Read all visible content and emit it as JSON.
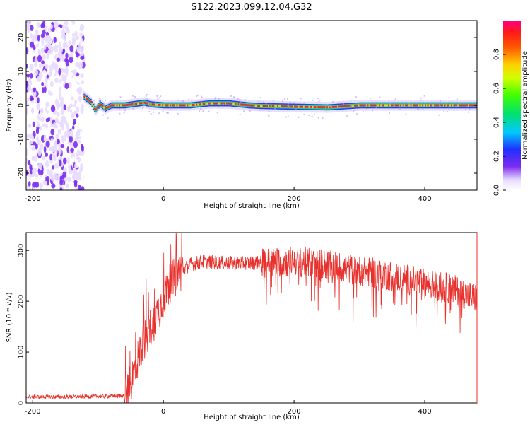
{
  "title": "S122.2023.099.12.04.G32",
  "chart_data": [
    {
      "type": "heatmap",
      "xlabel": "Height of straight line (km)",
      "ylabel": "Frequency (Hz)",
      "xlim": [
        -210,
        480
      ],
      "ylim": [
        -25,
        25
      ],
      "xticks": [
        -200,
        0,
        200,
        400
      ],
      "xtick_labels": [
        "-200",
        "0",
        "200",
        "400"
      ],
      "yticks": [
        -20,
        -10,
        0,
        10,
        20
      ],
      "ytick_labels": [
        "-20",
        "-10",
        "0",
        "10",
        "20"
      ],
      "colorbar": {
        "label": "Normalized spectral amplitude",
        "range": [
          0,
          1
        ],
        "ticks": [
          0.0,
          0.2,
          0.4,
          0.6,
          0.8
        ],
        "tick_labels": [
          "0.0",
          "0.2",
          "0.4",
          "0.6",
          "0.8"
        ],
        "colormap": "rainbow: white-violet-blue-cyan-green-yellow-orange-red-magenta"
      },
      "regions": [
        {
          "x": [
            -210,
            -122
          ],
          "freq": [
            -25,
            25
          ],
          "amplitude": 0.15
        },
        {
          "x": [
            -122,
            480
          ],
          "freq": [
            -1.5,
            1.5
          ],
          "amplitude": 0.9
        }
      ],
      "ridge": [
        {
          "x": -122,
          "f": 2.5
        },
        {
          "x": -112,
          "f": 1.0
        },
        {
          "x": -105,
          "f": -1.5
        },
        {
          "x": -98,
          "f": 0.5
        },
        {
          "x": -90,
          "f": -1.0
        },
        {
          "x": -80,
          "f": 0.0
        },
        {
          "x": -60,
          "f": 0.0
        },
        {
          "x": -30,
          "f": 0.8
        },
        {
          "x": -20,
          "f": 0.3
        },
        {
          "x": 0,
          "f": 0.0
        },
        {
          "x": 40,
          "f": 0.0
        },
        {
          "x": 70,
          "f": 0.6
        },
        {
          "x": 100,
          "f": 0.6
        },
        {
          "x": 130,
          "f": 0.0
        },
        {
          "x": 150,
          "f": -0.2
        },
        {
          "x": 200,
          "f": -0.4
        },
        {
          "x": 250,
          "f": -0.6
        },
        {
          "x": 300,
          "f": 0.0
        },
        {
          "x": 350,
          "f": 0.0
        },
        {
          "x": 400,
          "f": 0.0
        },
        {
          "x": 480,
          "f": 0.0
        }
      ]
    },
    {
      "type": "line",
      "xlabel": "Height of straight line (km)",
      "ylabel": "SNR (10 * v/v)",
      "xlim": [
        -210,
        480
      ],
      "ylim": [
        0,
        335
      ],
      "xticks": [
        -200,
        0,
        200,
        400
      ],
      "xtick_labels": [
        "-200",
        "0",
        "200",
        "400"
      ],
      "yticks": [
        0,
        100,
        200,
        300
      ],
      "ytick_labels": [
        "0",
        "100",
        "200",
        "300"
      ],
      "color": "#e8302c",
      "series": [
        {
          "x": [
            -210,
            -150,
            -100,
            -60,
            -55,
            -45,
            -35,
            -25,
            -15,
            -5,
            0,
            10,
            20,
            30,
            40,
            60,
            100,
            150,
            200,
            250,
            300,
            350,
            400,
            440,
            460,
            480
          ],
          "values": [
            12,
            12,
            13,
            14,
            20,
            60,
            105,
            135,
            160,
            190,
            205,
            235,
            250,
            262,
            272,
            278,
            275,
            276,
            278,
            272,
            260,
            250,
            235,
            225,
            215,
            205
          ]
        }
      ]
    }
  ]
}
